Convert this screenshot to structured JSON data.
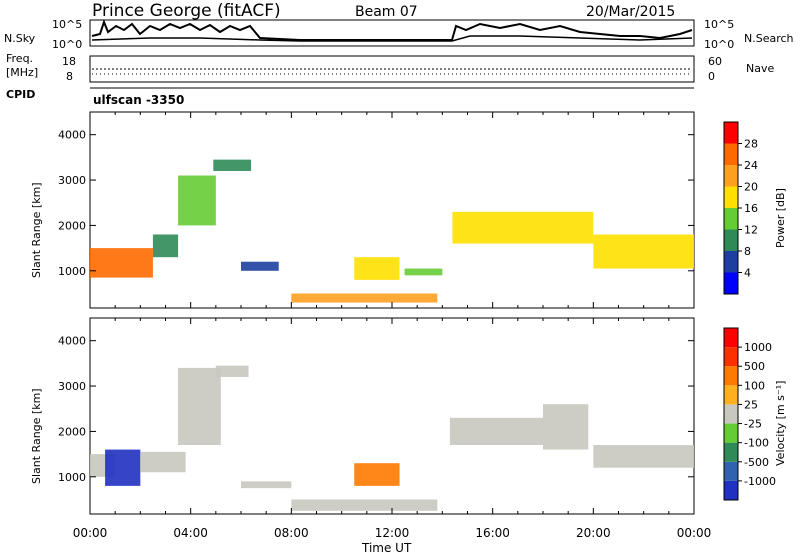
{
  "header": {
    "site": "Prince George (fitACF)",
    "beam": "Beam 07",
    "date": "20/Mar/2015"
  },
  "noise_panel": {
    "left_label": "N.Sky",
    "left_ticks": [
      "10^5",
      "10^0"
    ],
    "right_label": "N.Search",
    "right_ticks": [
      "10^5",
      "10^0"
    ]
  },
  "freq_panel": {
    "left_label_1": "Freq.",
    "left_label_2": "[MHz]",
    "left_ticks": [
      "18",
      "8"
    ],
    "right_label": "Nave",
    "right_ticks": [
      "60",
      "0"
    ]
  },
  "cpid": {
    "label": "CPID",
    "value": "ulfscan -3350"
  },
  "x_axis": {
    "label": "Time UT",
    "ticks": [
      "00:00",
      "04:00",
      "08:00",
      "12:00",
      "16:00",
      "20:00",
      "00:00"
    ]
  },
  "power_panel": {
    "ylabel": "Slant Range [km]",
    "yticks": [
      "1000",
      "2000",
      "3000",
      "4000"
    ],
    "colorbar_label": "Power [dB]",
    "colorbar_ticks": [
      "4",
      "8",
      "12",
      "16",
      "20",
      "24",
      "28"
    ],
    "colors": [
      "#0000ff",
      "#1f3fa0",
      "#2e8b57",
      "#66cc33",
      "#ffe000",
      "#ffa020",
      "#ff6a00",
      "#ff0000"
    ]
  },
  "velocity_panel": {
    "ylabel": "Slant Range [km]",
    "yticks": [
      "1000",
      "2000",
      "3000",
      "4000"
    ],
    "colorbar_label": "Velocity [m s⁻¹]",
    "colorbar_ticks": [
      "1000",
      "500",
      "100",
      "25",
      "-25",
      "-100",
      "-500",
      "-1000"
    ],
    "colors": [
      "#2030c0",
      "#2f63b0",
      "#2e8b57",
      "#66cc33",
      "#c8c8c0",
      "#ffb020",
      "#ff7a00",
      "#ff3000",
      "#ff0000"
    ]
  },
  "chart_data": [
    {
      "type": "heatmap",
      "title": "Prince George (fitACF) Beam 07 20/Mar/2015",
      "quantity": "Power",
      "xlabel": "Time UT",
      "ylabel": "Slant Range [km]",
      "xlim": [
        "00:00",
        "24:00"
      ],
      "ylim": [
        180,
        4500
      ],
      "clim": [
        0,
        30
      ],
      "units": "dB",
      "bands": [
        {
          "t_start": 0.0,
          "t_end": 2.5,
          "r_low": 850,
          "r_high": 1500,
          "value": 26
        },
        {
          "t_start": 2.5,
          "t_end": 3.5,
          "r_low": 1300,
          "r_high": 1800,
          "value": 10
        },
        {
          "t_start": 3.5,
          "t_end": 5.0,
          "r_low": 2000,
          "r_high": 3100,
          "value": 14
        },
        {
          "t_start": 4.9,
          "t_end": 6.4,
          "r_low": 3200,
          "r_high": 3450,
          "value": 8
        },
        {
          "t_start": 6.0,
          "t_end": 7.5,
          "r_low": 1000,
          "r_high": 1200,
          "value": 6
        },
        {
          "t_start": 8.0,
          "t_end": 13.8,
          "r_low": 300,
          "r_high": 500,
          "value": 20
        },
        {
          "t_start": 10.5,
          "t_end": 12.3,
          "r_low": 800,
          "r_high": 1300,
          "value": 18
        },
        {
          "t_start": 12.5,
          "t_end": 14.0,
          "r_low": 900,
          "r_high": 1050,
          "value": 12
        },
        {
          "t_start": 14.4,
          "t_end": 20.0,
          "r_low": 1600,
          "r_high": 2300,
          "value": 18
        },
        {
          "t_start": 20.0,
          "t_end": 24.0,
          "r_low": 1050,
          "r_high": 1800,
          "value": 16
        }
      ]
    },
    {
      "type": "heatmap",
      "quantity": "Velocity",
      "xlabel": "Time UT",
      "ylabel": "Slant Range [km]",
      "xlim": [
        "00:00",
        "24:00"
      ],
      "ylim": [
        180,
        4500
      ],
      "clim": [
        -1000,
        1000
      ],
      "units": "m s-1",
      "bands": [
        {
          "t_start": 0.0,
          "t_end": 1.0,
          "r_low": 1000,
          "r_high": 1500,
          "value": 0
        },
        {
          "t_start": 0.6,
          "t_end": 2.0,
          "r_low": 800,
          "r_high": 1600,
          "value": -1000
        },
        {
          "t_start": 2.0,
          "t_end": 3.8,
          "r_low": 1100,
          "r_high": 1550,
          "value": 0
        },
        {
          "t_start": 3.5,
          "t_end": 5.2,
          "r_low": 1700,
          "r_high": 3400,
          "value": 0
        },
        {
          "t_start": 5.0,
          "t_end": 6.3,
          "r_low": 3200,
          "r_high": 3450,
          "value": 0
        },
        {
          "t_start": 6.0,
          "t_end": 8.0,
          "r_low": 750,
          "r_high": 900,
          "value": 0
        },
        {
          "t_start": 8.0,
          "t_end": 13.8,
          "r_low": 250,
          "r_high": 500,
          "value": 100
        },
        {
          "t_start": 10.5,
          "t_end": 12.3,
          "r_low": 800,
          "r_high": 1300,
          "value": 500
        },
        {
          "t_start": 14.3,
          "t_end": 18.0,
          "r_low": 1700,
          "r_high": 2300,
          "value": 0
        },
        {
          "t_start": 18.0,
          "t_end": 19.8,
          "r_low": 1600,
          "r_high": 2600,
          "value": -100
        },
        {
          "t_start": 20.0,
          "t_end": 24.0,
          "r_low": 1200,
          "r_high": 1700,
          "value": 0
        }
      ]
    }
  ]
}
